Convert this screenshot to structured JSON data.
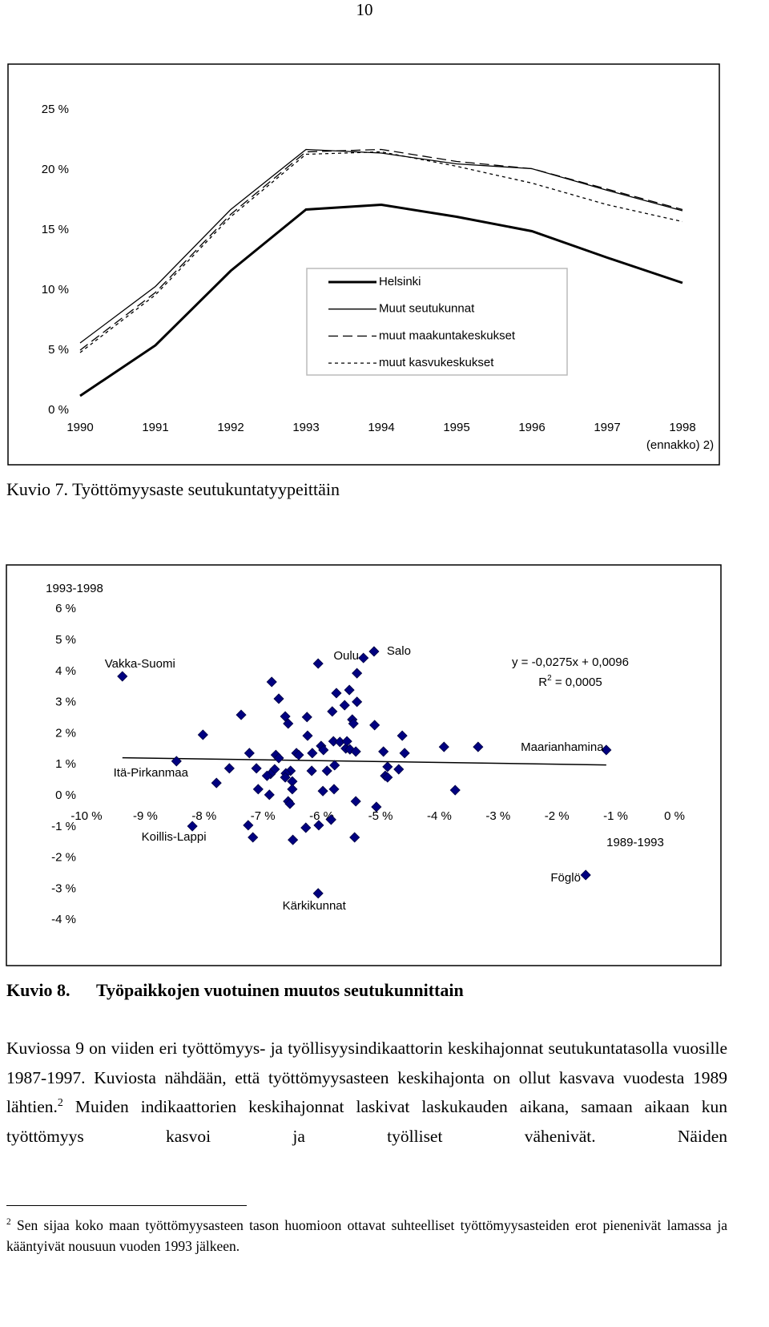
{
  "page_number": "10",
  "chart_data": [
    {
      "type": "line",
      "categories": [
        "1990",
        "1991",
        "1992",
        "1993",
        "1994",
        "1995",
        "1996",
        "1997",
        "1998"
      ],
      "x_note": "(ennakko) 2)",
      "ylim": [
        0,
        27
      ],
      "yticks": [
        {
          "value": 0,
          "label": "0 %"
        },
        {
          "value": 5,
          "label": "5 %"
        },
        {
          "value": 10,
          "label": "10 %"
        },
        {
          "value": 15,
          "label": "15 %"
        },
        {
          "value": 20,
          "label": "20 %"
        },
        {
          "value": 25,
          "label": "25 %"
        }
      ],
      "series": [
        {
          "name": "Helsinki",
          "color": "#000000",
          "line_style": "solid",
          "width": 3,
          "values": [
            1.2,
            5.4,
            11.6,
            16.7,
            17.1,
            16.1,
            14.9,
            12.7,
            10.6
          ]
        },
        {
          "name": "Muut seutukunnat",
          "color": "#000000",
          "line_style": "solid",
          "width": 1.3,
          "values": [
            5.6,
            10.3,
            16.7,
            21.7,
            21.4,
            20.5,
            20.1,
            18.3,
            16.6
          ]
        },
        {
          "name": "muut maakuntakeskukset",
          "color": "#000000",
          "line_style": "dashed",
          "width": 1.3,
          "values": [
            5.0,
            9.8,
            16.3,
            21.5,
            21.7,
            20.7,
            20.1,
            18.4,
            16.7
          ]
        },
        {
          "name": "muut kasvukeskukset",
          "color": "#000000",
          "line_style": "dotted",
          "width": 1.3,
          "values": [
            4.8,
            9.6,
            16.1,
            21.3,
            21.5,
            20.3,
            18.9,
            17.1,
            15.7
          ]
        }
      ]
    },
    {
      "type": "scatter",
      "y_label": "1993-1998",
      "x_label": "1989-1993",
      "color": "#000080",
      "xlim": [
        -10,
        0
      ],
      "xticks": [
        {
          "value": -10,
          "label": "-10 %"
        },
        {
          "value": -9,
          "label": "-9 %"
        },
        {
          "value": -8,
          "label": "-8 %"
        },
        {
          "value": -7,
          "label": "-7 %"
        },
        {
          "value": -6,
          "label": "-6 %"
        },
        {
          "value": -5,
          "label": "-5 %"
        },
        {
          "value": -4,
          "label": "-4 %"
        },
        {
          "value": -3,
          "label": "-3 %"
        },
        {
          "value": -2,
          "label": "-2 %"
        },
        {
          "value": -1,
          "label": "-1 %"
        },
        {
          "value": 0,
          "label": "0 %"
        }
      ],
      "ylim": [
        -4.4,
        6
      ],
      "yticks": [
        {
          "value": -4,
          "label": "-4 %"
        },
        {
          "value": -3,
          "label": "-3 %"
        },
        {
          "value": -2,
          "label": "-2 %"
        },
        {
          "value": -1,
          "label": "-1 %"
        },
        {
          "value": 0,
          "label": "0 %"
        },
        {
          "value": 1,
          "label": "1 %"
        },
        {
          "value": 2,
          "label": "2 %"
        },
        {
          "value": 3,
          "label": "3 %"
        },
        {
          "value": 4,
          "label": "4 %"
        },
        {
          "value": 5,
          "label": "5 %"
        },
        {
          "value": 6,
          "label": "6 %"
        }
      ],
      "x": [
        -9.39,
        -8.47,
        -8.02,
        -8.2,
        -7.79,
        -7.57,
        -7.37,
        -7.23,
        -7.17,
        -7.25,
        -7.11,
        -7.08,
        -6.89,
        -6.85,
        -6.73,
        -6.78,
        -6.73,
        -6.8,
        -6.87,
        -6.93,
        -6.62,
        -6.57,
        -6.53,
        -6.5,
        -6.61,
        -6.62,
        -6.5,
        -6.57,
        -6.54,
        -6.49,
        -6.43,
        -6.39,
        -6.25,
        -6.24,
        -6.27,
        -6.16,
        -6.17,
        -6.05,
        -6.06,
        -6.01,
        -5.97,
        -5.98,
        -6.06,
        -5.91,
        -5.84,
        -5.82,
        -5.8,
        -5.79,
        -5.78,
        -5.75,
        -5.69,
        -5.61,
        -5.59,
        -5.57,
        -5.53,
        -5.52,
        -5.48,
        -5.46,
        -5.42,
        -5.4,
        -5.4,
        -5.42,
        -5.44,
        -5.29,
        -5.11,
        -5.1,
        -5.07,
        -4.95,
        -4.92,
        -4.88,
        -4.88,
        -4.69,
        -4.63,
        -4.59,
        -3.92,
        -3.73,
        -3.34,
        -1.51,
        -1.16
      ],
      "values": [
        3.84,
        1.11,
        1.96,
        -0.98,
        0.41,
        0.88,
        2.6,
        1.37,
        -1.34,
        -0.95,
        0.88,
        0.21,
        0.03,
        3.66,
        3.12,
        1.31,
        1.21,
        0.85,
        0.7,
        0.64,
        2.55,
        2.32,
        0.8,
        0.46,
        0.72,
        0.59,
        0.21,
        -0.18,
        -0.26,
        -1.42,
        1.37,
        1.31,
        2.53,
        1.93,
        -1.03,
        1.37,
        0.8,
        -0.95,
        4.25,
        1.6,
        1.47,
        0.15,
        -3.14,
        0.8,
        -0.77,
        2.71,
        1.75,
        0.21,
        0.98,
        3.3,
        1.73,
        2.91,
        1.52,
        1.75,
        3.4,
        1.49,
        2.45,
        2.32,
        1.42,
        3.02,
        3.94,
        -0.18,
        -1.34,
        4.43,
        4.64,
        2.27,
        -0.36,
        1.42,
        0.64,
        0.59,
        0.93,
        0.85,
        1.93,
        1.37,
        1.57,
        0.18,
        1.57,
        -2.55,
        1.47
      ],
      "labels": [
        "Vakka-Suomi",
        "Itä-Pirkanmaa",
        null,
        "Koillis-Lappi",
        null,
        null,
        null,
        null,
        null,
        null,
        null,
        null,
        null,
        null,
        null,
        null,
        null,
        null,
        null,
        null,
        null,
        null,
        null,
        null,
        null,
        null,
        null,
        null,
        null,
        null,
        null,
        null,
        null,
        null,
        null,
        null,
        null,
        null,
        "Oulu",
        null,
        null,
        null,
        "Kärkikunnat",
        null,
        null,
        null,
        null,
        null,
        null,
        null,
        null,
        null,
        null,
        null,
        null,
        null,
        null,
        null,
        null,
        null,
        null,
        null,
        null,
        null,
        "Salo",
        null,
        null,
        null,
        null,
        null,
        null,
        null,
        null,
        null,
        null,
        null,
        null,
        "Föglö",
        "Maarianhamina"
      ],
      "trendline": {
        "x": [
          -9.39,
          -1.16
        ],
        "values": [
          1.22,
          0.99
        ]
      },
      "equation": "y = -0,0275x + 0,0096",
      "r_squared": [
        "R",
        "2",
        " = 0,0005"
      ]
    }
  ],
  "captions": [
    {
      "label": "Kuvio 7.",
      "text": "Työttömyysaste seutukuntatyypeittäin"
    },
    {
      "label": "Kuvio 8.",
      "text": "Työpaikkojen vuotuinen muutos seutukunnittain"
    }
  ],
  "body": {
    "text": "Kuviossa 9 on viiden eri työttömyys- ja työllisyysindikaattorin keskihajonnat seutukun­tatasolla vuosille 1987-1997. Kuviosta nähdään, että työttömyysasteen keskihajonta on ollut kasvava vuodesta 1989 lähtien.",
    "footnote_ref": "2",
    "text_after": " Muiden indikaattorien keskihajonnat laskivat las­kukauden aikana, samaan aikaan kun työttömyys kasvoi ja työlliset vähenivät. Näiden"
  },
  "footnote": {
    "marker": "2",
    "text": " Sen sijaa koko maan työttömyysasteen tason huomioon ottavat suhteelliset työttömyysasteiden erot pie­nenivät lamassa ja kääntyivät nousuun vuoden 1993 jälkeen."
  }
}
